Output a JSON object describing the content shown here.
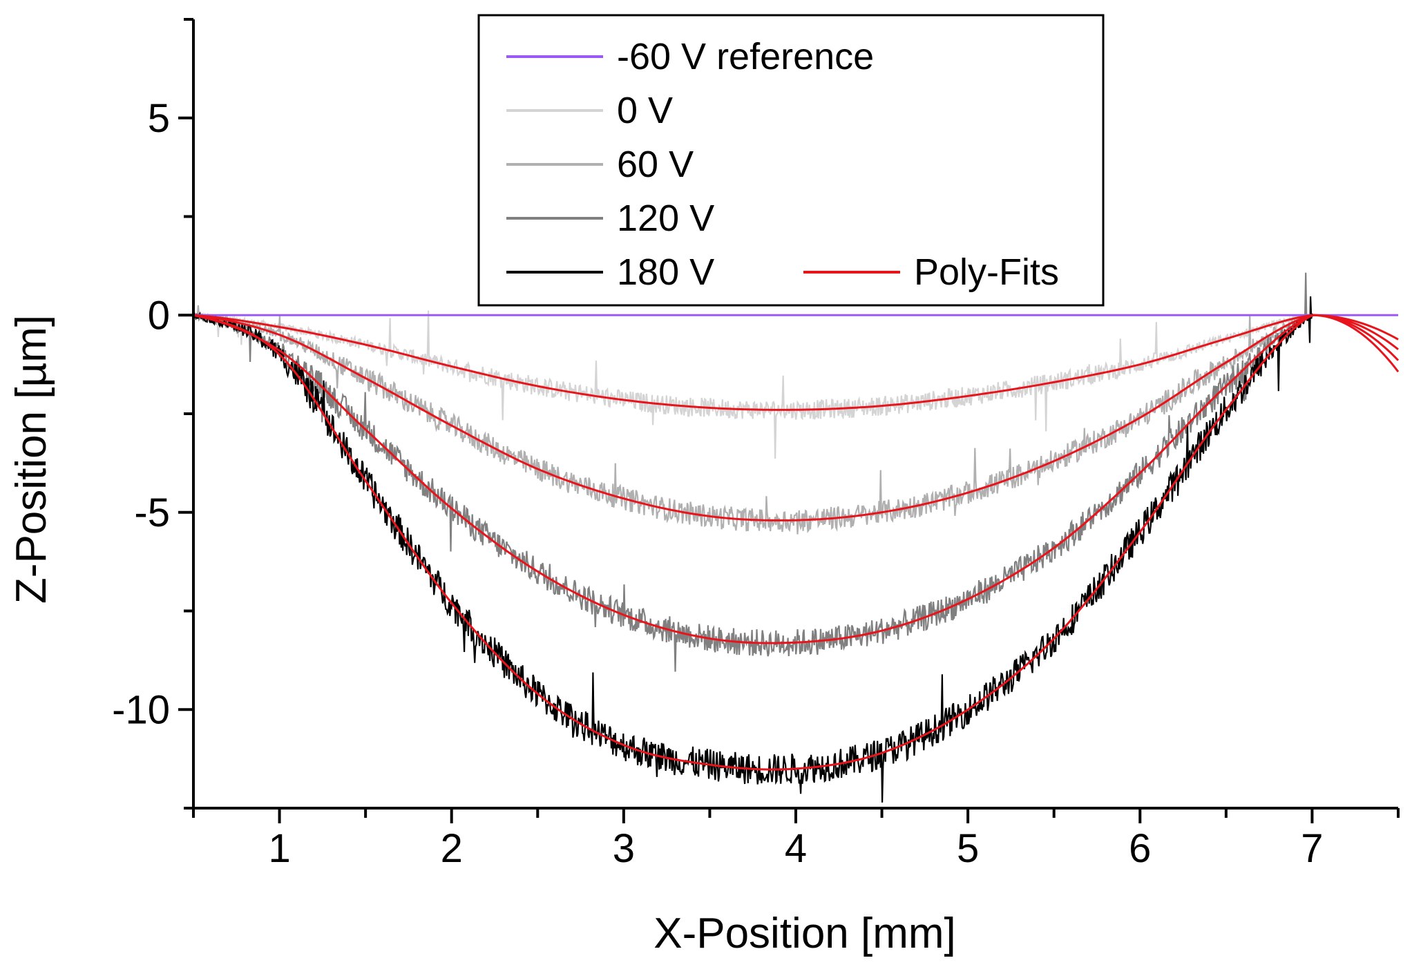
{
  "chart_data": {
    "type": "line",
    "xlabel": "X-Position [mm]",
    "ylabel": "Z-Position [µm]",
    "xlim": [
      0.5,
      7.5
    ],
    "ylim": [
      -12.5,
      7.5
    ],
    "xticks": [
      1,
      2,
      3,
      4,
      5,
      6,
      7
    ],
    "yticks": [
      5,
      0,
      -5,
      -10
    ],
    "grid": false,
    "legend_position": "top-center",
    "legend": [
      {
        "label": "-60 V reference",
        "color": "#9b59f5"
      },
      {
        "label": "0 V",
        "color": "#d4d4d4"
      },
      {
        "label": "60 V",
        "color": "#b0b0b0"
      },
      {
        "label": "120 V",
        "color": "#808080"
      },
      {
        "label": "180 V",
        "color": "#000000"
      },
      {
        "label": "Poly-Fits",
        "color": "#e8141c"
      }
    ],
    "series": [
      {
        "name": "-60 V reference",
        "color": "#9b59f5",
        "x": [
          0.5,
          7.5
        ],
        "y": [
          0,
          0
        ]
      },
      {
        "name": "0 V",
        "color": "#d4d4d4",
        "noise": 0.25,
        "x": [
          0.5,
          1.0,
          1.5,
          2.0,
          2.5,
          3.0,
          3.5,
          4.0,
          4.5,
          5.0,
          5.5,
          6.0,
          6.5,
          7.0
        ],
        "y": [
          0.0,
          -0.3,
          -0.75,
          -1.3,
          -1.8,
          -2.15,
          -2.35,
          -2.4,
          -2.3,
          -2.05,
          -1.7,
          -1.25,
          -0.6,
          0.0
        ]
      },
      {
        "name": "60 V",
        "color": "#b0b0b0",
        "noise": 0.3,
        "x": [
          0.5,
          1.0,
          1.5,
          2.0,
          2.5,
          3.0,
          3.5,
          4.0,
          4.5,
          5.0,
          5.5,
          6.0,
          6.5,
          7.0
        ],
        "y": [
          0.0,
          -0.5,
          -1.6,
          -2.8,
          -3.9,
          -4.65,
          -5.1,
          -5.2,
          -5.0,
          -4.5,
          -3.7,
          -2.6,
          -1.2,
          0.0
        ]
      },
      {
        "name": "120 V",
        "color": "#808080",
        "noise": 0.35,
        "x": [
          0.5,
          1.0,
          1.5,
          2.0,
          2.5,
          3.0,
          3.5,
          4.0,
          4.5,
          5.0,
          5.5,
          6.0,
          6.5,
          7.0
        ],
        "y": [
          0.0,
          -0.9,
          -2.9,
          -4.9,
          -6.5,
          -7.6,
          -8.2,
          -8.3,
          -8.0,
          -7.2,
          -5.9,
          -4.0,
          -1.8,
          0.0
        ]
      },
      {
        "name": "180 V",
        "color": "#000000",
        "noise": 0.4,
        "x": [
          0.5,
          1.0,
          1.5,
          2.0,
          2.5,
          3.0,
          3.5,
          4.0,
          4.5,
          5.0,
          5.5,
          6.0,
          6.5,
          7.0
        ],
        "y": [
          0.0,
          -1.0,
          -4.2,
          -7.3,
          -9.6,
          -10.9,
          -11.4,
          -11.5,
          -11.1,
          -10.0,
          -8.2,
          -5.5,
          -2.4,
          0.0
        ]
      },
      {
        "name": "Poly-Fits",
        "color": "#e8141c",
        "fit_of": [
          "0 V",
          "60 V",
          "120 V",
          "180 V"
        ]
      }
    ]
  }
}
